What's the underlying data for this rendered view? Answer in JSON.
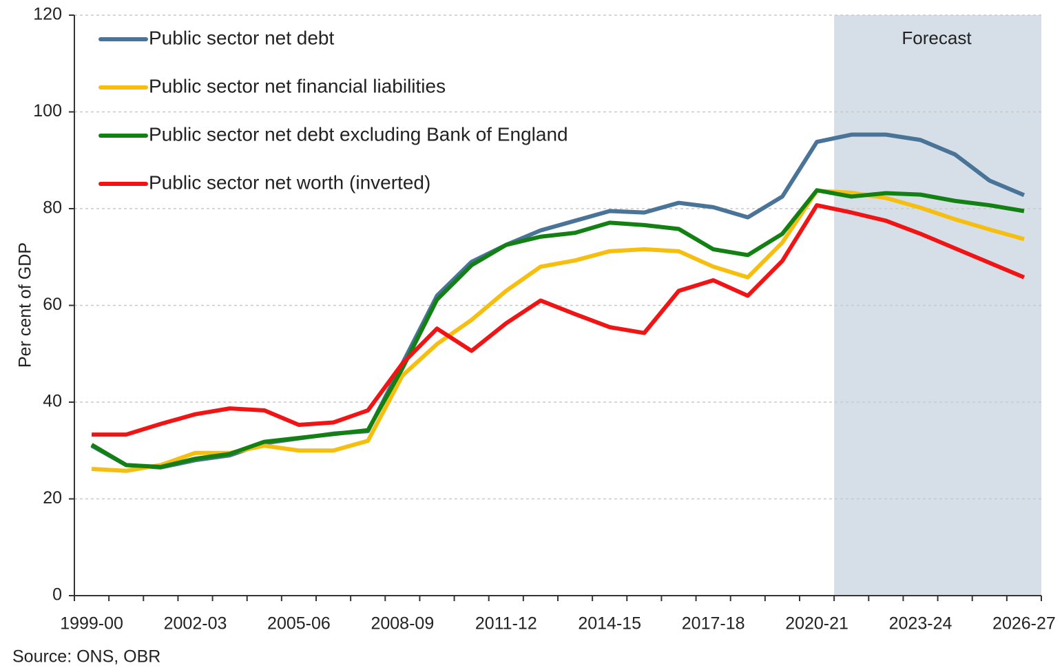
{
  "chart_data": {
    "type": "line",
    "y_label": "Per cent of GDP",
    "source": "Source: ONS, OBR",
    "annotation": "Forecast",
    "categories": [
      "1999-00",
      null,
      null,
      "2002-03",
      null,
      null,
      "2005-06",
      null,
      null,
      "2008-09",
      null,
      null,
      "2011-12",
      null,
      null,
      "2014-15",
      null,
      null,
      "2017-18",
      null,
      null,
      "2020-21",
      null,
      null,
      "2023-24",
      null,
      null,
      "2026-27"
    ],
    "series": [
      {
        "name": "Public sector net debt",
        "color": "#4a7398",
        "values": [
          31,
          27,
          26.5,
          28,
          29,
          31.5,
          32.5,
          33.5,
          34,
          48,
          62,
          69,
          72.5,
          75.5,
          77.5,
          79.5,
          79.2,
          81.2,
          80.3,
          78.2,
          82.5,
          93.8,
          95.3,
          95.3,
          94.2,
          91.2,
          85.8,
          82.8
        ]
      },
      {
        "name": "Public sector net financial liabilities",
        "color": "#f6bf0f",
        "values": [
          26.2,
          25.8,
          27,
          29.5,
          29.5,
          31,
          30,
          30,
          32,
          45.5,
          52,
          57,
          63,
          68,
          69.3,
          71.2,
          71.6,
          71.2,
          68,
          65.8,
          73,
          83.7,
          83.3,
          82.2,
          80.2,
          77.8,
          75.7,
          73.7
        ]
      },
      {
        "name": "Public sector net debt excluding Bank of England",
        "color": "#128012",
        "values": [
          31.2,
          27,
          26.6,
          28.3,
          29.3,
          31.8,
          32.6,
          33.4,
          34.2,
          47,
          61.2,
          68.3,
          72.5,
          74.2,
          75,
          77.1,
          76.6,
          75.8,
          71.6,
          70.4,
          74.8,
          83.8,
          82.5,
          83.2,
          82.9,
          81.6,
          80.7,
          79.5
        ]
      },
      {
        "name": "Public sector net worth (inverted)",
        "color": "#f01414",
        "values": [
          33.3,
          33.3,
          35.5,
          37.5,
          38.7,
          38.3,
          35.3,
          35.8,
          38.3,
          48,
          55.2,
          50.6,
          56.3,
          61,
          58.2,
          55.5,
          54.3,
          63,
          65.2,
          62,
          69.2,
          80.7,
          79.2,
          77.5,
          74.8,
          71.8,
          68.8,
          65.8
        ]
      }
    ],
    "ylim": [
      0,
      120
    ],
    "yticks": [
      0,
      20,
      40,
      60,
      80,
      100,
      120
    ],
    "grid": true
  }
}
